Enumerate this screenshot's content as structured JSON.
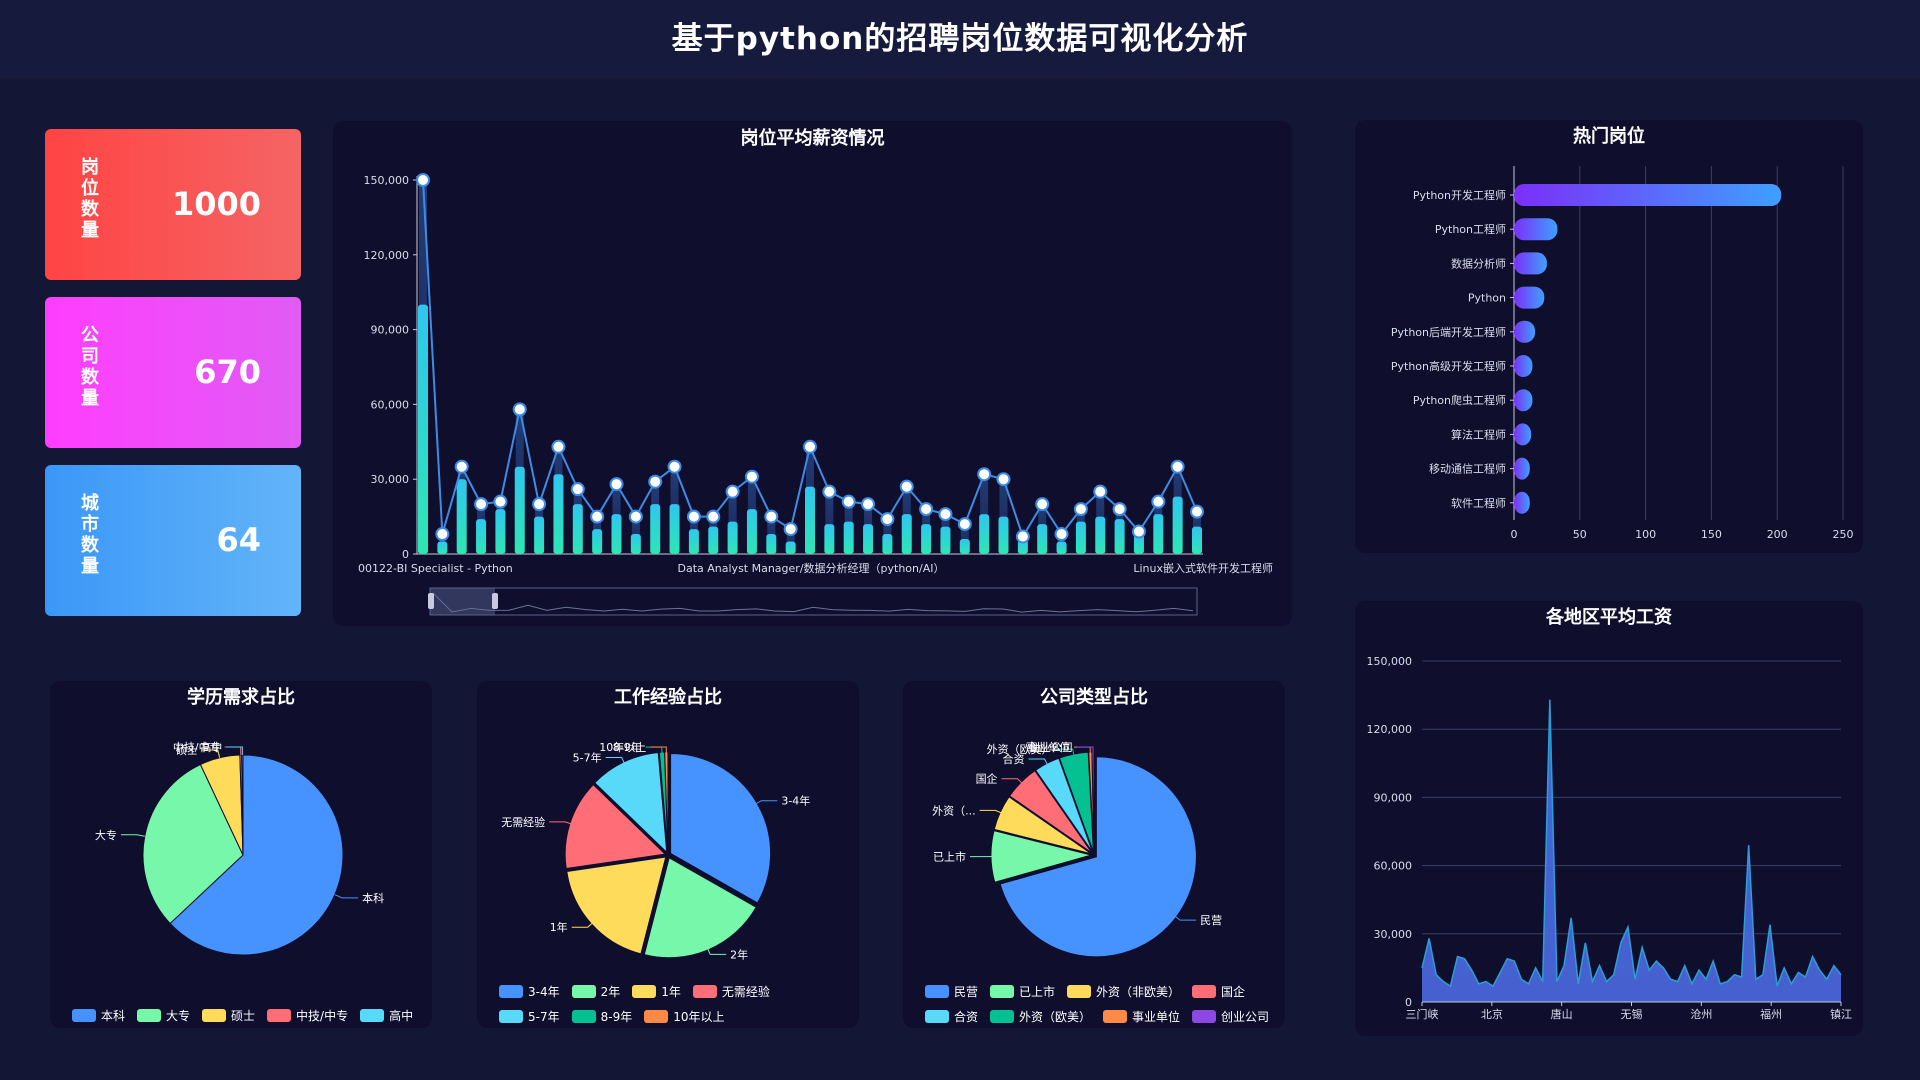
{
  "page_title": "基于python的招聘岗位数据可视化分析",
  "stats": [
    {
      "label": "岗位数量",
      "value": "1000"
    },
    {
      "label": "公司数量",
      "value": "670"
    },
    {
      "label": "城市数量",
      "value": "64"
    }
  ],
  "colors": {
    "stat1": [
      "#ff4444",
      "#f56464"
    ],
    "stat2": [
      "#ff3dff",
      "#e05cf4"
    ],
    "stat3": [
      "#3b97f7",
      "#63b5f9"
    ],
    "pie": [
      "#4693ff",
      "#76f7a9",
      "#ffdb5c",
      "#ff6e76",
      "#58d9f9",
      "#05c091",
      "#ff8a45",
      "#8d48e3"
    ]
  },
  "chart_data": [
    {
      "id": "salary",
      "type": "bar",
      "title": "岗位平均薪资情况",
      "x_ticks": [
        "00122-BI Specialist - Python",
        "Data Analyst Manager/数据分析经理（python/AI）",
        "Linux嵌入式软件开发工程师"
      ],
      "y_ticks": [
        "0",
        "30,000",
        "60,000",
        "90,000",
        "120,000",
        "150,000"
      ],
      "ylim": [
        0,
        150000
      ],
      "bar_values": [
        100000,
        5000,
        30000,
        14000,
        18000,
        35000,
        15000,
        32000,
        20000,
        10000,
        16000,
        8000,
        20000,
        20000,
        10000,
        11000,
        13000,
        18000,
        8000,
        5000,
        27000,
        12000,
        13000,
        12000,
        8000,
        16000,
        12000,
        11000,
        6000,
        16000,
        15000,
        6000,
        12000,
        5000,
        13000,
        15000,
        14000,
        8000,
        16000,
        23000,
        11000
      ],
      "line_values": [
        150000,
        8000,
        35000,
        20000,
        21000,
        58000,
        20000,
        43000,
        26000,
        15000,
        28000,
        15000,
        29000,
        35000,
        15000,
        15000,
        25000,
        31000,
        15000,
        10000,
        43000,
        25000,
        21000,
        20000,
        14000,
        27000,
        18000,
        16000,
        12000,
        32000,
        30000,
        7000,
        20000,
        8000,
        18000,
        25000,
        18000,
        9000,
        21000,
        35000,
        17000
      ]
    },
    {
      "id": "hot_jobs",
      "type": "bar",
      "orientation": "horizontal",
      "title": "热门岗位",
      "categories": [
        "Python开发工程师",
        "Python工程师",
        "数据分析师",
        "Python",
        "Python后端开发工程师",
        "Python高级开发工程师",
        "Python爬虫工程师",
        "算法工程师",
        "移动通信工程师",
        "软件工程师"
      ],
      "values": [
        203,
        33,
        25,
        23,
        16,
        14,
        14,
        13,
        12,
        12
      ],
      "x_ticks": [
        "0",
        "50",
        "100",
        "150",
        "200",
        "250"
      ],
      "xlim": [
        0,
        250
      ]
    },
    {
      "id": "edu",
      "type": "pie",
      "title": "学历需求占比",
      "labels": [
        "本科",
        "大专",
        "硕士",
        "中技/中专",
        "高中"
      ],
      "values": [
        630,
        300,
        65,
        3,
        2
      ]
    },
    {
      "id": "exp",
      "type": "pie",
      "title": "工作经验占比",
      "labels": [
        "3-4年",
        "2年",
        "1年",
        "无需经验",
        "5-7年",
        "8-9年",
        "10年以上"
      ],
      "values": [
        320,
        200,
        180,
        140,
        110,
        8,
        5
      ]
    },
    {
      "id": "comp",
      "type": "pie",
      "title": "公司类型占比",
      "labels": [
        "民营",
        "已上市",
        "外资（非欧美）",
        "国企",
        "合资",
        "外资（欧美）",
        "事业单位",
        "创业公司"
      ],
      "slice_labels": [
        "民营",
        "已上市",
        "外资（...",
        "国企",
        "合资",
        "外资（欧美）",
        "事业单位",
        "创业公司"
      ],
      "values": [
        680,
        80,
        55,
        55,
        40,
        45,
        5,
        3
      ]
    },
    {
      "id": "region",
      "type": "area",
      "title": "各地区平均工资",
      "x_ticks": [
        "三门峡",
        "北京",
        "唐山",
        "无锡",
        "沧州",
        "福州",
        "镇江"
      ],
      "y_ticks": [
        "0",
        "30,000",
        "60,000",
        "90,000",
        "120,000",
        "150,000"
      ],
      "ylim": [
        0,
        150000
      ],
      "values": [
        15000,
        28000,
        12000,
        9000,
        7000,
        20000,
        19000,
        14000,
        8000,
        9000,
        7000,
        13000,
        19000,
        18000,
        10000,
        8000,
        15000,
        9000,
        133000,
        9000,
        16000,
        37000,
        8000,
        26000,
        9000,
        16000,
        9000,
        12000,
        26000,
        33000,
        10000,
        24000,
        14000,
        18000,
        15000,
        10000,
        9000,
        16000,
        8000,
        14000,
        10000,
        18000,
        8000,
        9000,
        12000,
        11000,
        69000,
        10000,
        12000,
        34000,
        7000,
        15000,
        8000,
        13000,
        11000,
        20000,
        14000,
        10000,
        16000,
        12000
      ]
    }
  ]
}
